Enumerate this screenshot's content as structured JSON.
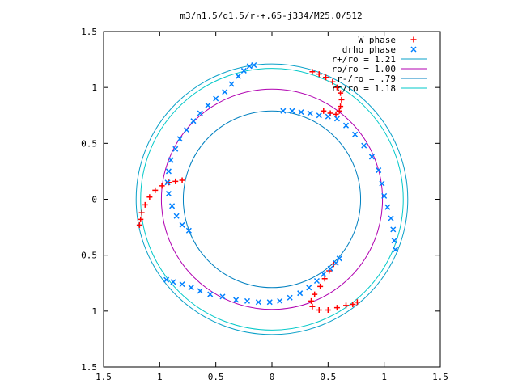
{
  "chart_data": {
    "type": "scatter",
    "title": "m3/n1.5/q1.5/r-+.65-j334/M25.0/512",
    "xlabel": "",
    "ylabel": "",
    "xlim": [
      -1.5,
      1.5
    ],
    "ylim": [
      -1.5,
      1.5
    ],
    "x_ticks": [
      {
        "value": -1.5,
        "label": "1.5"
      },
      {
        "value": -1.0,
        "label": "1"
      },
      {
        "value": -0.5,
        "label": "0.5"
      },
      {
        "value": 0.0,
        "label": "0"
      },
      {
        "value": 0.5,
        "label": "0.5"
      },
      {
        "value": 1.0,
        "label": "1"
      },
      {
        "value": 1.5,
        "label": "1.5"
      }
    ],
    "y_ticks": [
      {
        "value": 1.5,
        "label": "1.5"
      },
      {
        "value": 1.0,
        "label": "1"
      },
      {
        "value": 0.5,
        "label": "0.5"
      },
      {
        "value": 0.0,
        "label": "0"
      },
      {
        "value": -0.5,
        "label": "0.5"
      },
      {
        "value": -1.0,
        "label": "1"
      },
      {
        "value": -1.5,
        "label": "1.5"
      }
    ],
    "grid": false,
    "legend_position": "top-right",
    "series": [
      {
        "name": "W phase",
        "kind": "points",
        "marker": "plus",
        "color": "#ff0000",
        "points": [
          [
            0.36,
            1.14
          ],
          [
            0.42,
            1.12
          ],
          [
            0.48,
            1.09
          ],
          [
            0.54,
            1.05
          ],
          [
            0.58,
            1.0
          ],
          [
            0.61,
            0.95
          ],
          [
            0.62,
            0.89
          ],
          [
            0.61,
            0.83
          ],
          [
            0.6,
            0.79
          ],
          [
            0.57,
            0.76
          ],
          [
            0.52,
            0.77
          ],
          [
            0.46,
            0.79
          ],
          [
            -0.8,
            0.17
          ],
          [
            -0.86,
            0.16
          ],
          [
            -0.92,
            0.15
          ],
          [
            -0.98,
            0.12
          ],
          [
            -1.04,
            0.08
          ],
          [
            -1.09,
            0.02
          ],
          [
            -1.13,
            -0.05
          ],
          [
            -1.16,
            -0.12
          ],
          [
            -1.17,
            -0.18
          ],
          [
            -1.18,
            -0.23
          ],
          [
            0.55,
            -0.58
          ],
          [
            0.51,
            -0.64
          ],
          [
            0.47,
            -0.71
          ],
          [
            0.43,
            -0.78
          ],
          [
            0.38,
            -0.85
          ],
          [
            0.35,
            -0.91
          ],
          [
            0.36,
            -0.96
          ],
          [
            0.42,
            -0.99
          ],
          [
            0.5,
            -0.99
          ],
          [
            0.58,
            -0.97
          ],
          [
            0.66,
            -0.95
          ],
          [
            0.72,
            -0.94
          ],
          [
            0.76,
            -0.92
          ]
        ]
      },
      {
        "name": "drho phase",
        "kind": "points",
        "marker": "cross",
        "color": "#0080ff",
        "points": [
          [
            -0.16,
            1.2
          ],
          [
            -0.2,
            1.19
          ],
          [
            -0.25,
            1.15
          ],
          [
            -0.3,
            1.1
          ],
          [
            -0.36,
            1.03
          ],
          [
            -0.42,
            0.96
          ],
          [
            -0.5,
            0.9
          ],
          [
            -0.57,
            0.84
          ],
          [
            -0.64,
            0.77
          ],
          [
            -0.7,
            0.7
          ],
          [
            -0.76,
            0.62
          ],
          [
            -0.82,
            0.54
          ],
          [
            -0.86,
            0.45
          ],
          [
            -0.9,
            0.35
          ],
          [
            -0.92,
            0.25
          ],
          [
            -0.93,
            0.15
          ],
          [
            -0.92,
            0.05
          ],
          [
            -0.89,
            -0.06
          ],
          [
            -0.85,
            -0.15
          ],
          [
            -0.8,
            -0.23
          ],
          [
            -0.74,
            -0.28
          ],
          [
            0.1,
            0.79
          ],
          [
            0.18,
            0.79
          ],
          [
            0.26,
            0.78
          ],
          [
            0.34,
            0.77
          ],
          [
            0.42,
            0.75
          ],
          [
            0.5,
            0.74
          ],
          [
            0.58,
            0.72
          ],
          [
            0.66,
            0.66
          ],
          [
            0.74,
            0.58
          ],
          [
            0.82,
            0.48
          ],
          [
            0.89,
            0.38
          ],
          [
            0.95,
            0.26
          ],
          [
            0.98,
            0.14
          ],
          [
            1.0,
            0.03
          ],
          [
            1.03,
            -0.07
          ],
          [
            1.06,
            -0.17
          ],
          [
            1.08,
            -0.27
          ],
          [
            1.09,
            -0.37
          ],
          [
            1.1,
            -0.45
          ],
          [
            0.6,
            -0.53
          ],
          [
            0.57,
            -0.57
          ],
          [
            0.52,
            -0.62
          ],
          [
            0.46,
            -0.67
          ],
          [
            0.4,
            -0.73
          ],
          [
            0.33,
            -0.79
          ],
          [
            0.25,
            -0.84
          ],
          [
            0.16,
            -0.88
          ],
          [
            0.07,
            -0.91
          ],
          [
            -0.02,
            -0.92
          ],
          [
            -0.12,
            -0.92
          ],
          [
            -0.22,
            -0.91
          ],
          [
            -0.32,
            -0.9
          ],
          [
            -0.44,
            -0.87
          ],
          [
            -0.55,
            -0.85
          ],
          [
            -0.64,
            -0.82
          ],
          [
            -0.72,
            -0.79
          ],
          [
            -0.8,
            -0.76
          ],
          [
            -0.88,
            -0.74
          ],
          [
            -0.94,
            -0.72
          ]
        ]
      },
      {
        "name": "r+/ro = 1.21",
        "kind": "circle",
        "radius": 1.21,
        "color": "#0aa0c8"
      },
      {
        "name": "ro/ro = 1.00",
        "kind": "circle",
        "radius": 0.985,
        "color": "#b000b0"
      },
      {
        "name": "r-/ro = .79",
        "kind": "circle",
        "radius": 0.79,
        "color": "#0080c0"
      },
      {
        "name": "rc/ro = 1.18",
        "kind": "circle",
        "radius": 1.17,
        "color": "#00c8c8"
      }
    ]
  }
}
